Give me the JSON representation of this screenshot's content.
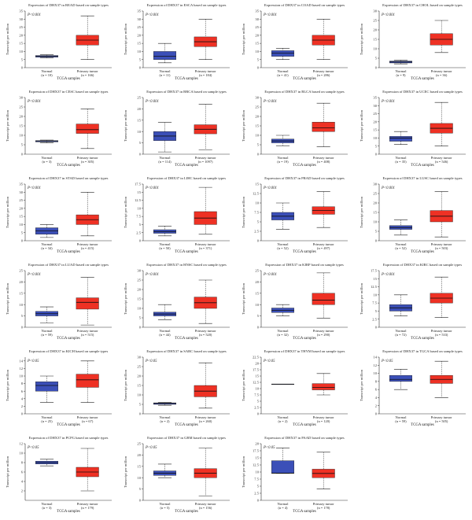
{
  "colors": {
    "normal": "#3b4fb8",
    "tumor": "#ee3124",
    "axis": "#333333"
  },
  "chart_data": [
    {
      "type": "box",
      "title": "Expression of DHX37 in READ based on sample types",
      "pvalue": "P<0.001",
      "ylabel": "Transcript per million",
      "xlabel": "TCGA samples",
      "ylim": [
        0,
        35
      ],
      "yticks": [
        0,
        5,
        10,
        15,
        20,
        25,
        30,
        35
      ],
      "groups": [
        {
          "name": "Normal",
          "n": "(n = 10)",
          "min": 6,
          "q1": 6.5,
          "median": 7,
          "q3": 7.5,
          "max": 8
        },
        {
          "name": "Primary tumor",
          "n": "(n = 166)",
          "min": 5,
          "q1": 14,
          "median": 17,
          "q3": 20,
          "max": 32
        }
      ]
    },
    {
      "type": "box",
      "title": "Expression of DHX37 in ESCA based on sample types",
      "pvalue": "P<0.001",
      "ylabel": "Transcript per million",
      "xlabel": "TCGA samples",
      "ylim": [
        0,
        35
      ],
      "yticks": [
        0,
        5,
        10,
        15,
        20,
        25,
        30,
        35
      ],
      "groups": [
        {
          "name": "Normal",
          "n": "(n = 11)",
          "min": 3,
          "q1": 5,
          "median": 7,
          "q3": 10,
          "max": 15
        },
        {
          "name": "Primary tumor",
          "n": "(n = 184)",
          "min": 5,
          "q1": 13,
          "median": 16,
          "q3": 19,
          "max": 30
        }
      ]
    },
    {
      "type": "box",
      "title": "Expression of DHX37 in COAD based on sample types",
      "pvalue": "P<0.001",
      "ylabel": "Transcript per million",
      "xlabel": "TCGA samples",
      "ylim": [
        0,
        35
      ],
      "yticks": [
        0,
        5,
        10,
        15,
        20,
        25,
        30,
        35
      ],
      "groups": [
        {
          "name": "Normal",
          "n": "(n = 41)",
          "min": 5,
          "q1": 7,
          "median": 9,
          "q3": 10.5,
          "max": 12
        },
        {
          "name": "Primary tumor",
          "n": "(n = 286)",
          "min": 5,
          "q1": 14,
          "median": 17,
          "q3": 20,
          "max": 30
        }
      ]
    },
    {
      "type": "box",
      "title": "Expression of DHX37 in CHOL based on sample types",
      "pvalue": "P<0.001",
      "ylabel": "Transcript per million",
      "xlabel": "TCGA samples",
      "ylim": [
        0,
        30
      ],
      "yticks": [
        0,
        5,
        10,
        15,
        20,
        25,
        30
      ],
      "groups": [
        {
          "name": "Normal",
          "n": "(n = 9)",
          "min": 2,
          "q1": 2.5,
          "median": 3,
          "q3": 3.5,
          "max": 4
        },
        {
          "name": "Primary tumor",
          "n": "(n = 36)",
          "min": 8,
          "q1": 12,
          "median": 15,
          "q3": 18,
          "max": 25
        }
      ]
    },
    {
      "type": "box",
      "title": "Expression of DHX37 in CESC based on sample types",
      "pvalue": "P<0.001",
      "ylabel": "Transcript per million",
      "xlabel": "TCGA samples",
      "ylim": [
        0,
        30
      ],
      "yticks": [
        0,
        5,
        10,
        15,
        20,
        25,
        30
      ],
      "groups": [
        {
          "name": "Normal",
          "n": "(n = 3)",
          "min": 6,
          "q1": 6.5,
          "median": 7,
          "q3": 7.2,
          "max": 7.5
        },
        {
          "name": "Primary tumor",
          "n": "(n = 305)",
          "min": 3,
          "q1": 11,
          "median": 13,
          "q3": 16,
          "max": 24
        }
      ]
    },
    {
      "type": "box",
      "title": "Expression of DHX37 in BRCA based on sample types",
      "pvalue": "P<0.001",
      "ylabel": "Transcript per million",
      "xlabel": "TCGA samples",
      "ylim": [
        0,
        25
      ],
      "yticks": [
        0,
        5,
        10,
        15,
        20,
        25
      ],
      "groups": [
        {
          "name": "Normal",
          "n": "(n = 114)",
          "min": 1,
          "q1": 6,
          "median": 8,
          "q3": 10,
          "max": 14
        },
        {
          "name": "Primary tumor",
          "n": "(n = 1097)",
          "min": 2,
          "q1": 9,
          "median": 11,
          "q3": 13,
          "max": 22
        }
      ]
    },
    {
      "type": "box",
      "title": "Expression of DHX37 in BLCA based on sample types",
      "pvalue": "P<0.001",
      "ylabel": "Transcript per million",
      "xlabel": "TCGA samples",
      "ylim": [
        0,
        30
      ],
      "yticks": [
        0,
        5,
        10,
        15,
        20,
        25,
        30
      ],
      "groups": [
        {
          "name": "Normal",
          "n": "(n = 19)",
          "min": 4.5,
          "q1": 6,
          "median": 7,
          "q3": 8,
          "max": 10
        },
        {
          "name": "Primary tumor",
          "n": "(n = 408)",
          "min": 4,
          "q1": 12,
          "median": 14,
          "q3": 17,
          "max": 27
        }
      ]
    },
    {
      "type": "box",
      "title": "Expression of DHX37 in UCEC based on sample types",
      "pvalue": "P<0.001",
      "ylabel": "Transcript per million",
      "xlabel": "TCGA samples",
      "ylim": [
        0,
        35
      ],
      "yticks": [
        0,
        5,
        10,
        15,
        20,
        25,
        30,
        35
      ],
      "groups": [
        {
          "name": "Normal",
          "n": "(n = 35)",
          "min": 6,
          "q1": 8,
          "median": 10,
          "q3": 11,
          "max": 14
        },
        {
          "name": "Primary tumor",
          "n": "(n = 546)",
          "min": 5,
          "q1": 13,
          "median": 16,
          "q3": 19,
          "max": 32
        }
      ]
    },
    {
      "type": "box",
      "title": "Expression of DHX37 in STAD based on sample types",
      "pvalue": "P<0.001",
      "ylabel": "Transcript per million",
      "xlabel": "TCGA samples",
      "ylim": [
        0,
        35
      ],
      "yticks": [
        0,
        5,
        10,
        15,
        20,
        25,
        30,
        35
      ],
      "groups": [
        {
          "name": "Normal",
          "n": "(n = 34)",
          "min": 2,
          "q1": 4,
          "median": 6,
          "q3": 8,
          "max": 10
        },
        {
          "name": "Primary tumor",
          "n": "(n = 415)",
          "min": 3,
          "q1": 10,
          "median": 13,
          "q3": 16,
          "max": 30
        }
      ]
    },
    {
      "type": "box",
      "title": "Expression of DHX37 in LIHC based on sample types",
      "pvalue": "P<0.001",
      "ylabel": "Transcript per million",
      "xlabel": "TCGA samples",
      "ylim": [
        0,
        17.5
      ],
      "yticks": [
        0,
        2.5,
        5,
        7.5,
        10,
        12.5,
        15,
        17.5
      ],
      "groups": [
        {
          "name": "Normal",
          "n": "(n = 50)",
          "min": 1.5,
          "q1": 2.3,
          "median": 2.8,
          "q3": 3.4,
          "max": 4.5
        },
        {
          "name": "Primary tumor",
          "n": "(n = 371)",
          "min": 2,
          "q1": 5,
          "median": 7,
          "q3": 9,
          "max": 16.5
        }
      ]
    },
    {
      "type": "box",
      "title": "Expression of DHX37 in PRAD based on sample types",
      "pvalue": "P<0.001",
      "ylabel": "Transcript per million",
      "xlabel": "TCGA samples",
      "ylim": [
        0,
        15
      ],
      "yticks": [
        0,
        2.5,
        5,
        7.5,
        10,
        12.5,
        15
      ],
      "groups": [
        {
          "name": "Normal",
          "n": "(n = 52)",
          "min": 3,
          "q1": 5.5,
          "median": 6.5,
          "q3": 7.5,
          "max": 10
        },
        {
          "name": "Primary tumor",
          "n": "(n = 497)",
          "min": 3.5,
          "q1": 7,
          "median": 8,
          "q3": 9,
          "max": 13
        }
      ]
    },
    {
      "type": "box",
      "title": "Expression of DHX37 in LUSC based on sample types",
      "pvalue": "P<0.001",
      "ylabel": "Transcript per million",
      "xlabel": "TCGA samples",
      "ylim": [
        0,
        30
      ],
      "yticks": [
        0,
        5,
        10,
        15,
        20,
        25,
        30
      ],
      "groups": [
        {
          "name": "Normal",
          "n": "(n = 52)",
          "min": 3,
          "q1": 6,
          "median": 7,
          "q3": 8,
          "max": 11
        },
        {
          "name": "Primary tumor",
          "n": "(n = 503)",
          "min": 2,
          "q1": 10,
          "median": 13,
          "q3": 16,
          "max": 26
        }
      ]
    },
    {
      "type": "box",
      "title": "Expression of DHX37 in LUAD based on sample types",
      "pvalue": "P<0.001",
      "ylabel": "Transcript per million",
      "xlabel": "TCGA samples",
      "ylim": [
        0,
        25
      ],
      "yticks": [
        0,
        5,
        10,
        15,
        20,
        25
      ],
      "groups": [
        {
          "name": "Normal",
          "n": "(n = 59)",
          "min": 2,
          "q1": 5,
          "median": 6,
          "q3": 7,
          "max": 9
        },
        {
          "name": "Primary tumor",
          "n": "(n = 515)",
          "min": 1,
          "q1": 8,
          "median": 11,
          "q3": 13,
          "max": 22
        }
      ]
    },
    {
      "type": "box",
      "title": "Expression of DHX37 in HNSC based on sample types",
      "pvalue": "P<0.001",
      "ylabel": "Transcript per million",
      "xlabel": "TCGA samples",
      "ylim": [
        0,
        30
      ],
      "yticks": [
        0,
        5,
        10,
        15,
        20,
        25,
        30
      ],
      "groups": [
        {
          "name": "Normal",
          "n": "(n = 44)",
          "min": 4,
          "q1": 6,
          "median": 7,
          "q3": 8,
          "max": 12
        },
        {
          "name": "Primary tumor",
          "n": "(n = 520)",
          "min": 2,
          "q1": 10,
          "median": 13,
          "q3": 16,
          "max": 25
        }
      ]
    },
    {
      "type": "box",
      "title": "Expression of DHX37 in KIRP based on sample types",
      "pvalue": "P<0.001",
      "ylabel": "Transcript per million",
      "xlabel": "TCGA samples",
      "ylim": [
        0,
        25
      ],
      "yticks": [
        0,
        5,
        10,
        15,
        20,
        25
      ],
      "groups": [
        {
          "name": "Normal",
          "n": "(n = 32)",
          "min": 5,
          "q1": 6.5,
          "median": 7.5,
          "q3": 8.5,
          "max": 10
        },
        {
          "name": "Primary tumor",
          "n": "(n = 290)",
          "min": 4,
          "q1": 10,
          "median": 12,
          "q3": 15,
          "max": 24
        }
      ]
    },
    {
      "type": "box",
      "title": "Expression of DHX37 in KIRC based on sample types",
      "pvalue": "P<0.001",
      "ylabel": "Transcript per million",
      "xlabel": "TCGA samples",
      "ylim": [
        0,
        17.5
      ],
      "yticks": [
        0,
        2.5,
        5,
        7.5,
        10,
        12.5,
        15,
        17.5
      ],
      "groups": [
        {
          "name": "Normal",
          "n": "(n = 72)",
          "min": 3.5,
          "q1": 5,
          "median": 6,
          "q3": 7,
          "max": 10
        },
        {
          "name": "Primary tumor",
          "n": "(n = 533)",
          "min": 3,
          "q1": 7.5,
          "median": 9,
          "q3": 10.5,
          "max": 15.5
        }
      ]
    },
    {
      "type": "box",
      "title": "Expression of DHX37 in KICH based on sample types",
      "pvalue": "P<0.05",
      "ylabel": "Transcript per million",
      "xlabel": "TCGA samples",
      "ylim": [
        0,
        15
      ],
      "yticks": [
        0,
        2,
        4,
        6,
        8,
        10,
        12,
        14
      ],
      "groups": [
        {
          "name": "Normal",
          "n": "(n = 25)",
          "min": 3,
          "q1": 6,
          "median": 7.5,
          "q3": 8.5,
          "max": 10
        },
        {
          "name": "Primary tumor",
          "n": "(n = 67)",
          "min": 3,
          "q1": 7,
          "median": 9,
          "q3": 10.5,
          "max": 14
        }
      ]
    },
    {
      "type": "box",
      "title": "Expression of DHX37 in SARC based on sample types",
      "pvalue": "P<0.05",
      "ylabel": "Transcript per million",
      "xlabel": "TCGA samples",
      "ylim": [
        0,
        30
      ],
      "yticks": [
        0,
        5,
        10,
        15,
        20,
        25,
        30
      ],
      "groups": [
        {
          "name": "Normal",
          "n": "(n = 2)",
          "min": 4.5,
          "q1": 5,
          "median": 5.5,
          "q3": 5.8,
          "max": 6
        },
        {
          "name": "Primary tumor",
          "n": "(n = 260)",
          "min": 3,
          "q1": 9,
          "median": 12,
          "q3": 15,
          "max": 27
        }
      ]
    },
    {
      "type": "box",
      "title": "Expression of DHX37 in THYM based on sample types",
      "pvalue": "P<0.05",
      "ylabel": "Transcript per million",
      "xlabel": "TCGA samples",
      "ylim": [
        0,
        22.5
      ],
      "yticks": [
        0,
        2.5,
        5,
        7.5,
        10,
        12.5,
        15,
        17.5,
        20,
        22.5
      ],
      "groups": [
        {
          "name": "Normal",
          "n": "(n = 2)",
          "min": 11.8,
          "q1": 11.8,
          "median": 11.8,
          "q3": 11.8,
          "max": 11.8
        },
        {
          "name": "Primary tumor",
          "n": "(n = 120)",
          "min": 7.5,
          "q1": 9.5,
          "median": 10.5,
          "q3": 12,
          "max": 16
        }
      ]
    },
    {
      "type": "box",
      "title": "Expression of DHX37 in TGCA based on sample types",
      "pvalue": "P<0.05",
      "ylabel": "Transcript per million",
      "xlabel": "TCGA samples",
      "ylim": [
        0,
        14
      ],
      "yticks": [
        0,
        2,
        4,
        6,
        8,
        10,
        12,
        14
      ],
      "groups": [
        {
          "name": "Normal",
          "n": "(n = 59)",
          "min": 6,
          "q1": 8,
          "median": 8.5,
          "q3": 9.5,
          "max": 11
        },
        {
          "name": "Primary tumor",
          "n": "(n = 505)",
          "min": 4,
          "q1": 7.5,
          "median": 8.5,
          "q3": 9.5,
          "max": 13
        }
      ]
    },
    {
      "type": "box",
      "title": "Expression of DHX37 in PCPG based on sample types",
      "pvalue": "P<0.05",
      "ylabel": "Transcript per million",
      "xlabel": "TCGA samples",
      "ylim": [
        0,
        12
      ],
      "yticks": [
        2,
        4,
        6,
        8,
        10,
        12
      ],
      "groups": [
        {
          "name": "Normal",
          "n": "(n = 3)",
          "min": 7.3,
          "q1": 7.7,
          "median": 8,
          "q3": 8.3,
          "max": 8.7
        },
        {
          "name": "Primary tumor",
          "n": "(n = 179)",
          "min": 2,
          "q1": 5,
          "median": 6,
          "q3": 7,
          "max": 11
        }
      ]
    },
    {
      "type": "box",
      "title": "Expression of DHX37 in GBM based on sample types",
      "pvalue": "P<0.05",
      "ylabel": "Transcript per million",
      "xlabel": "TCGA samples",
      "ylim": [
        0,
        25
      ],
      "yticks": [
        0,
        5,
        10,
        15,
        20,
        25
      ],
      "groups": [
        {
          "name": "Normal",
          "n": "(n = 5)",
          "min": 10,
          "q1": 11,
          "median": 12,
          "q3": 13,
          "max": 16
        },
        {
          "name": "Primary tumor",
          "n": "(n = 156)",
          "min": 2,
          "q1": 10,
          "median": 12,
          "q3": 14,
          "max": 23
        }
      ]
    },
    {
      "type": "box",
      "title": "Expression of DHX37 in PAAD based on sample types",
      "pvalue": "P<0.05",
      "ylabel": "Transcript per million",
      "xlabel": "TCGA samples",
      "ylim": [
        0,
        20
      ],
      "yticks": [
        0,
        2.5,
        5,
        7.5,
        10,
        12.5,
        15,
        17.5,
        20
      ],
      "groups": [
        {
          "name": "Normal",
          "n": "(n = 4)",
          "min": 9.5,
          "q1": 9.5,
          "median": 9.6,
          "q3": 14,
          "max": 18.5
        },
        {
          "name": "Primary tumor",
          "n": "(n = 178)",
          "min": 4,
          "q1": 8,
          "median": 9.5,
          "q3": 11,
          "max": 17
        }
      ]
    }
  ]
}
